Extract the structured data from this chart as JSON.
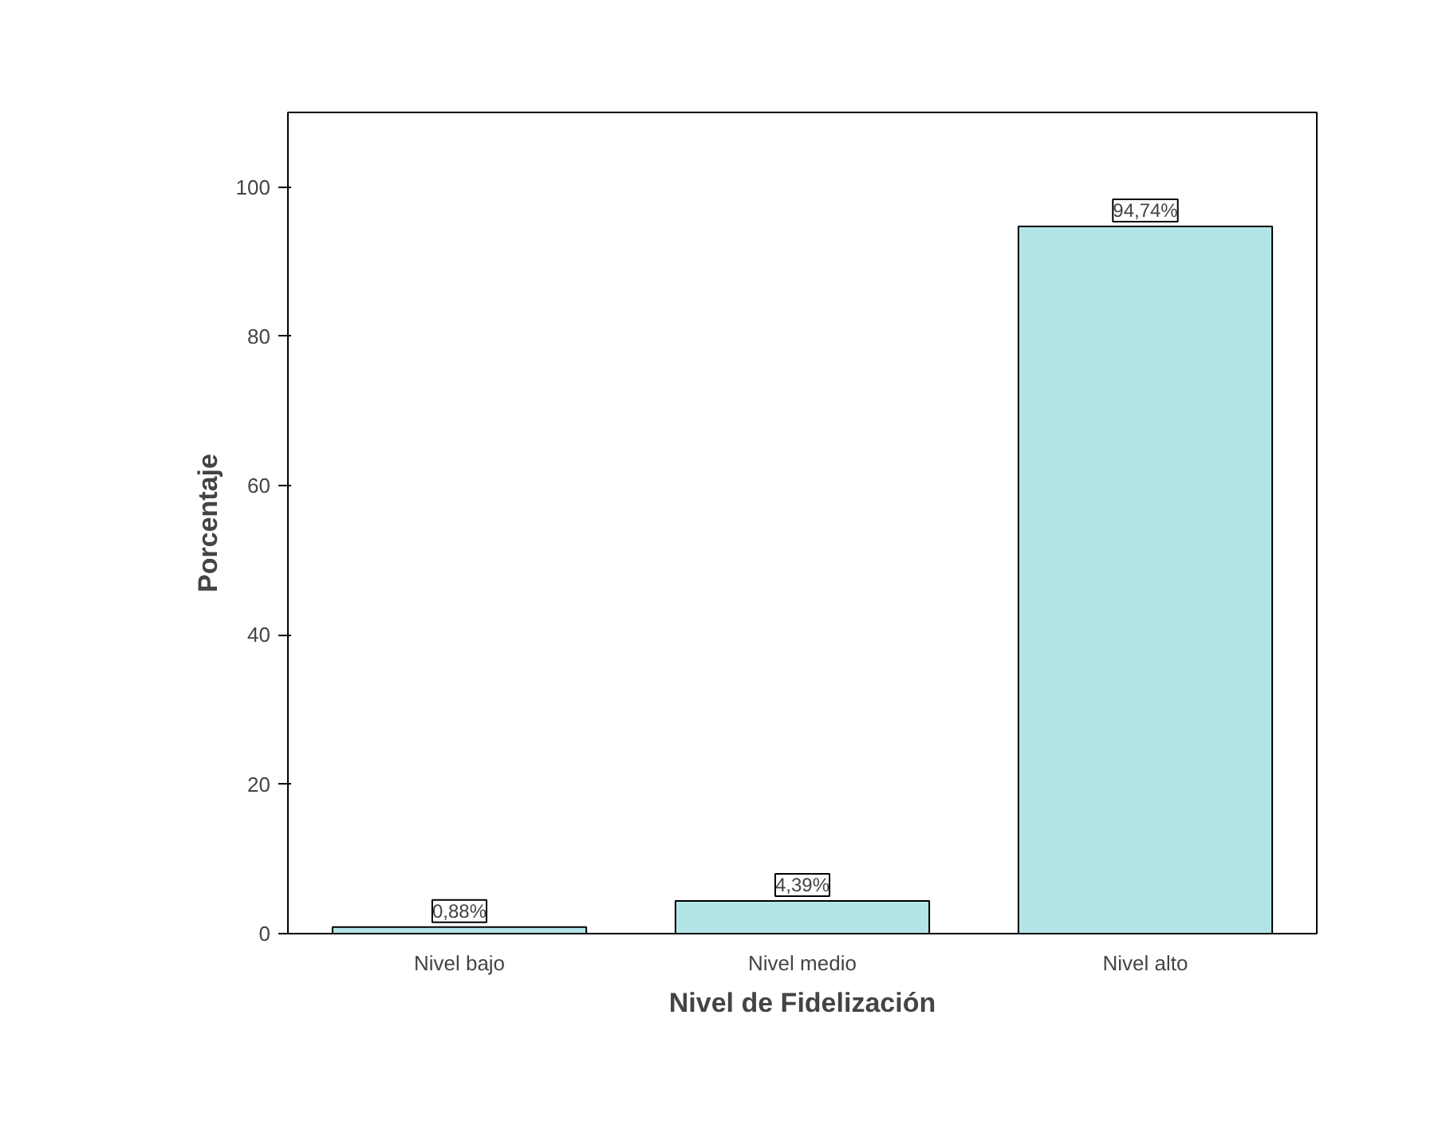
{
  "chart_data": {
    "type": "bar",
    "xlabel": "Nivel de Fidelización",
    "ylabel": "Porcentaje",
    "categories": [
      "Nivel bajo",
      "Nivel medio",
      "Nivel alto"
    ],
    "values": [
      0.88,
      4.39,
      94.74
    ],
    "value_labels": [
      "0,88%",
      "4,39%",
      "94,74%"
    ],
    "color": "#b3e5e7",
    "ylim": [
      0,
      110
    ],
    "yticks": [
      0,
      20,
      40,
      60,
      80,
      100
    ],
    "grid": false
  }
}
